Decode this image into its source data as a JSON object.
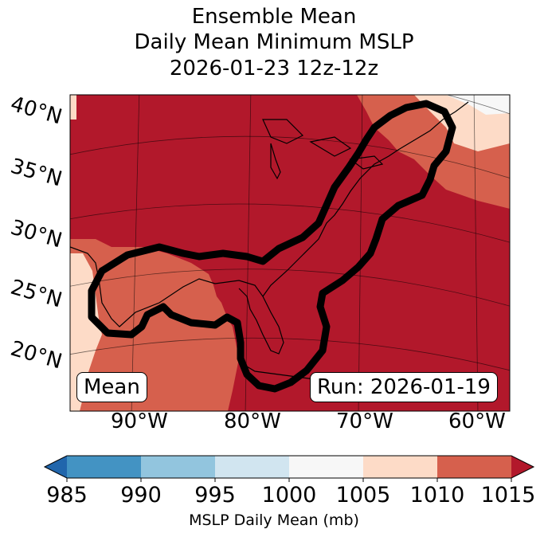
{
  "title": {
    "line1": "Ensemble Mean",
    "line2": "Daily Mean Minimum MSLP",
    "line3": "2026-01-23 12z-12z"
  },
  "map": {
    "lat_labels": [
      "40°N",
      "35°N",
      "30°N",
      "25°N",
      "20°N"
    ],
    "lon_labels": [
      "90°W",
      "80°W",
      "70°W",
      "60°W"
    ],
    "mean_box": "Mean",
    "run_box": "Run: 2026-01-19"
  },
  "colorbar": {
    "ticks": [
      "985",
      "990",
      "995",
      "1000",
      "1005",
      "1010",
      "1015"
    ],
    "label": "MSLP Daily Mean (mb)",
    "colors": {
      "under": "#2166ac",
      "c985_990": "#4393c3",
      "c990_995": "#92c5de",
      "c995_1000": "#d1e5f0",
      "c1000_1005": "#f7f7f7",
      "c1005_1010": "#fddbc7",
      "c1010_1015": "#d6604d",
      "over": "#b2182b"
    }
  }
}
